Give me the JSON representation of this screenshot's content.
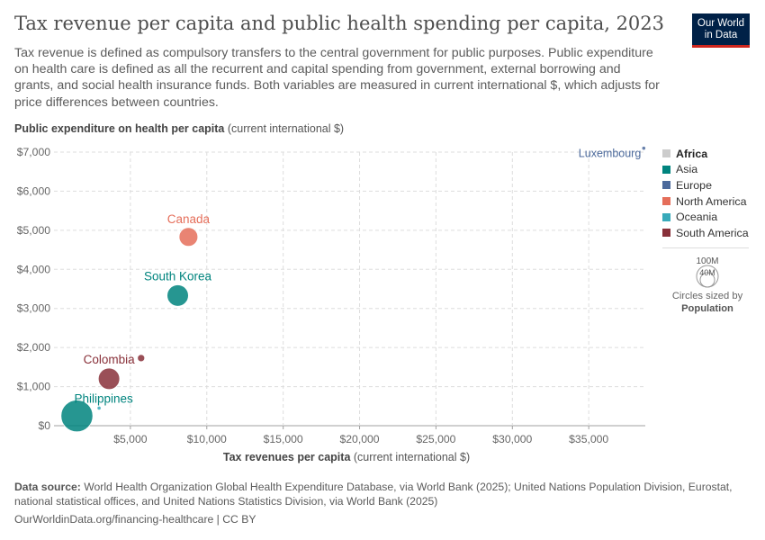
{
  "header": {
    "title": "Tax revenue per capita and public health spending per capita, 2023",
    "subtitle": "Tax revenue is defined as compulsory transfers to the central government for public purposes. Public expenditure on health care is defined as all the recurrent and capital spending from government, external borrowing and grants, and social health insurance funds. Both variables are measured in current international $, which adjusts for price differences between countries.",
    "logo_line1": "Our World",
    "logo_line2": "in Data"
  },
  "axes": {
    "y_title": "Public expenditure on health per capita",
    "y_unit": " (current international $)",
    "x_title": "Tax revenues per capita",
    "x_unit": " (current international $)"
  },
  "legend": {
    "items": [
      {
        "label": "Africa",
        "color": "#cccccc",
        "active": true
      },
      {
        "label": "Asia",
        "color": "#00847e",
        "active": false
      },
      {
        "label": "Europe",
        "color": "#4c6a9c",
        "active": false
      },
      {
        "label": "North America",
        "color": "#e56e5a",
        "active": false
      },
      {
        "label": "Oceania",
        "color": "#38aaba",
        "active": false
      },
      {
        "label": "South America",
        "color": "#883039",
        "active": false
      }
    ],
    "size_large": "100M",
    "size_small": "40M",
    "size_caption": "Circles sized by",
    "size_caption_bold": "Population"
  },
  "footer": {
    "source_label": "Data source:",
    "source_text": " World Health Organization Global Health Expenditure Database, via World Bank (2025); United Nations Population Division, Eurostat, national statistical offices, and United Nations Statistics Division, via World Bank (2025)",
    "url_text": "OurWorldinData.org/financing-healthcare | CC BY"
  },
  "chart_data": {
    "type": "scatter",
    "title": "Tax revenue per capita and public health spending per capita, 2023",
    "xlabel": "Tax revenues per capita (current international $)",
    "ylabel": "Public expenditure on health per capita (current international $)",
    "xlim": [
      0,
      38700
    ],
    "ylim": [
      0,
      7000
    ],
    "x_ticks": [
      5000,
      10000,
      15000,
      20000,
      25000,
      30000,
      35000
    ],
    "x_tick_labels": [
      "$5,000",
      "$10,000",
      "$15,000",
      "$20,000",
      "$25,000",
      "$30,000",
      "$35,000"
    ],
    "y_ticks": [
      0,
      1000,
      2000,
      3000,
      4000,
      5000,
      6000,
      7000
    ],
    "y_tick_labels": [
      "$0",
      "$1,000",
      "$2,000",
      "$3,000",
      "$4,000",
      "$5,000",
      "$6,000",
      "$7,000"
    ],
    "grid": true,
    "legend_position": "right",
    "points": [
      {
        "label": "Luxembourg",
        "region": "Europe",
        "x": 38600,
        "y": 7100,
        "population_m": 0.7
      },
      {
        "label": "Canada",
        "region": "North America",
        "x": 8800,
        "y": 4830,
        "population_m": 40
      },
      {
        "label": "South Korea",
        "region": "Asia",
        "x": 8100,
        "y": 3330,
        "population_m": 52
      },
      {
        "label": "",
        "region": "South America",
        "x": 5700,
        "y": 1730,
        "population_m": 6
      },
      {
        "label": "Colombia",
        "region": "South America",
        "x": 3600,
        "y": 1200,
        "population_m": 52
      },
      {
        "label": "Philippines",
        "region": "Asia",
        "x": 1500,
        "y": 250,
        "population_m": 115
      },
      {
        "label": "",
        "region": "Oceania",
        "x": 2950,
        "y": 450,
        "population_m": 0.9
      }
    ]
  }
}
